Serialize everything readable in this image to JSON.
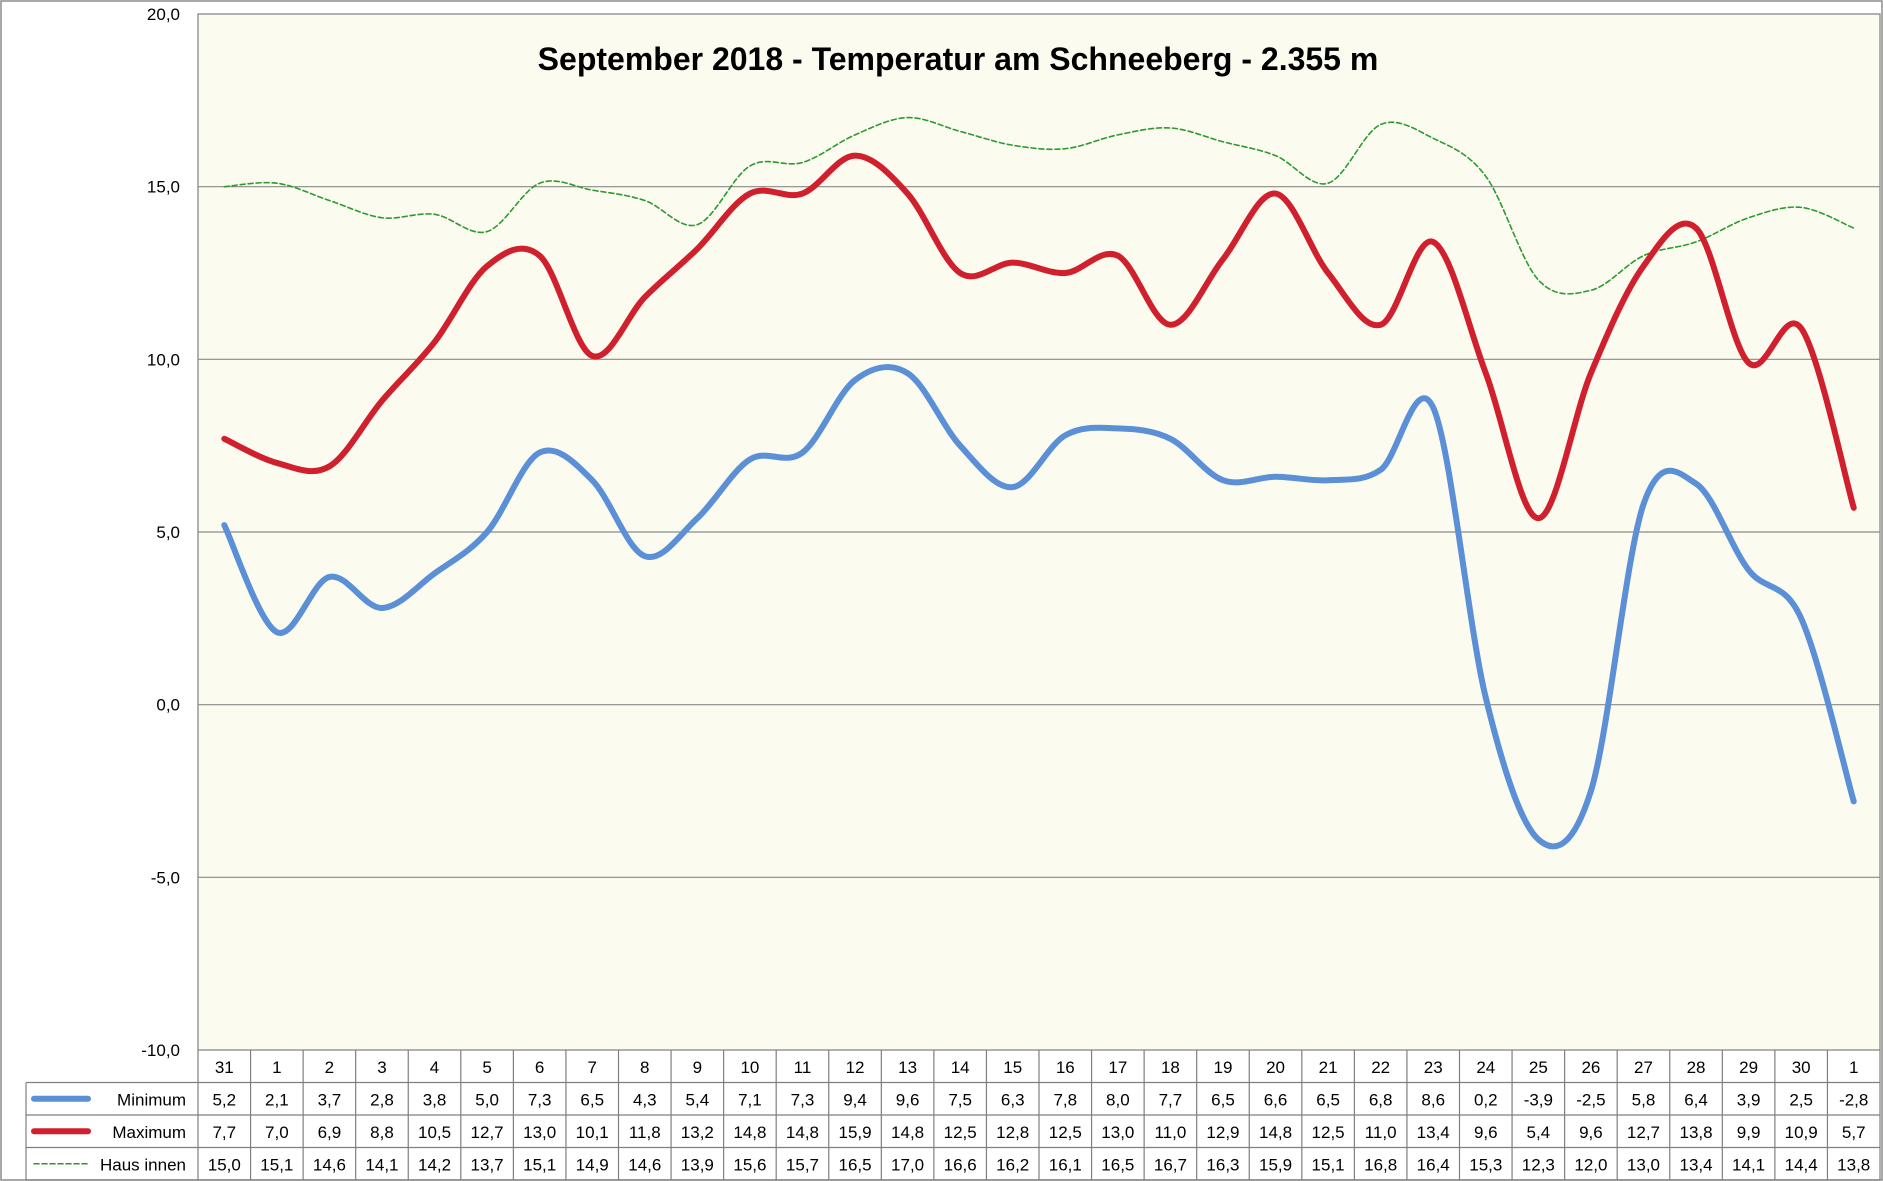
{
  "chart_data": {
    "type": "line",
    "title": "September 2018 - Temperatur am Schneeberg - 2.355 m",
    "xlabel": "",
    "ylabel": "",
    "ylim": [
      -10,
      20
    ],
    "y_ticks": [
      "20,0",
      "15,0",
      "10,0",
      "5,0",
      "0,0",
      "-5,0",
      "-10,0"
    ],
    "y_tick_values": [
      20,
      15,
      10,
      5,
      0,
      -5,
      -10
    ],
    "grid": true,
    "legend": "data-table-left",
    "categories": [
      "31",
      "1",
      "2",
      "3",
      "4",
      "5",
      "6",
      "7",
      "8",
      "9",
      "10",
      "11",
      "12",
      "13",
      "14",
      "15",
      "16",
      "17",
      "18",
      "19",
      "20",
      "21",
      "22",
      "23",
      "24",
      "25",
      "26",
      "27",
      "28",
      "29",
      "30",
      "1"
    ],
    "series": [
      {
        "name": "Minimum",
        "color": "#5b8fd6",
        "style": "solid-thick",
        "values": [
          5.2,
          2.1,
          3.7,
          2.8,
          3.8,
          5.0,
          7.3,
          6.5,
          4.3,
          5.4,
          7.1,
          7.3,
          9.4,
          9.6,
          7.5,
          6.3,
          7.8,
          8.0,
          7.7,
          6.5,
          6.6,
          6.5,
          6.8,
          8.6,
          0.2,
          -3.9,
          -2.5,
          5.8,
          6.4,
          3.9,
          2.5,
          -2.8
        ],
        "labels": [
          "5,2",
          "2,1",
          "3,7",
          "2,8",
          "3,8",
          "5,0",
          "7,3",
          "6,5",
          "4,3",
          "5,4",
          "7,1",
          "7,3",
          "9,4",
          "9,6",
          "7,5",
          "6,3",
          "7,8",
          "8,0",
          "7,7",
          "6,5",
          "6,6",
          "6,5",
          "6,8",
          "8,6",
          "0,2",
          "-3,9",
          "-2,5",
          "5,8",
          "6,4",
          "3,9",
          "2,5",
          "-2,8"
        ]
      },
      {
        "name": "Maximum",
        "color": "#d0202e",
        "style": "solid-thick",
        "values": [
          7.7,
          7.0,
          6.9,
          8.8,
          10.5,
          12.7,
          13.0,
          10.1,
          11.8,
          13.2,
          14.8,
          14.8,
          15.9,
          14.8,
          12.5,
          12.8,
          12.5,
          13.0,
          11.0,
          12.9,
          14.8,
          12.5,
          11.0,
          13.4,
          9.6,
          5.4,
          9.6,
          12.7,
          13.8,
          9.9,
          10.9,
          5.7
        ],
        "labels": [
          "7,7",
          "7,0",
          "6,9",
          "8,8",
          "10,5",
          "12,7",
          "13,0",
          "10,1",
          "11,8",
          "13,2",
          "14,8",
          "14,8",
          "15,9",
          "14,8",
          "12,5",
          "12,8",
          "12,5",
          "13,0",
          "11,0",
          "12,9",
          "14,8",
          "12,5",
          "11,0",
          "13,4",
          "9,6",
          "5,4",
          "9,6",
          "12,7",
          "13,8",
          "9,9",
          "10,9",
          "5,7"
        ]
      },
      {
        "name": "Haus innen",
        "color": "#2e9a2e",
        "style": "dashed-thin",
        "values": [
          15.0,
          15.1,
          14.6,
          14.1,
          14.2,
          13.7,
          15.1,
          14.9,
          14.6,
          13.9,
          15.6,
          15.7,
          16.5,
          17.0,
          16.6,
          16.2,
          16.1,
          16.5,
          16.7,
          16.3,
          15.9,
          15.1,
          16.8,
          16.4,
          15.3,
          12.3,
          12.0,
          13.0,
          13.4,
          14.1,
          14.4,
          13.8
        ],
        "labels": [
          "15,0",
          "15,1",
          "14,6",
          "14,1",
          "14,2",
          "13,7",
          "15,1",
          "14,9",
          "14,6",
          "13,9",
          "15,6",
          "15,7",
          "16,5",
          "17,0",
          "16,6",
          "16,2",
          "16,1",
          "16,5",
          "16,7",
          "16,3",
          "15,9",
          "15,1",
          "16,8",
          "16,4",
          "15,3",
          "12,3",
          "12,0",
          "13,0",
          "13,4",
          "14,1",
          "14,4",
          "13,8"
        ]
      }
    ]
  }
}
